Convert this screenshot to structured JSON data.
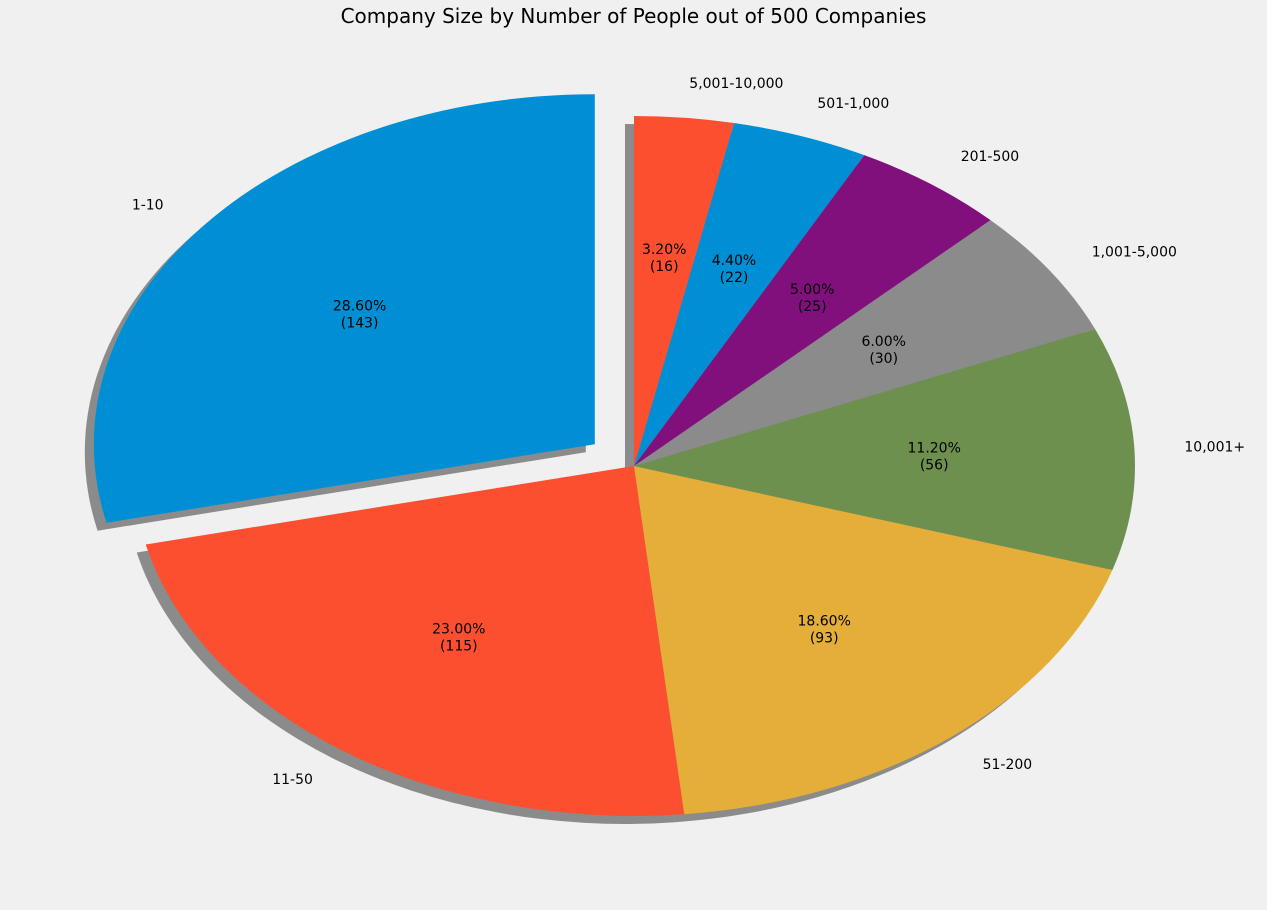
{
  "chart_data": {
    "type": "pie",
    "title": "Company Size by Number of People out of 500 Companies",
    "total": 500,
    "start_angle_deg": 90,
    "direction": "counterclockwise",
    "shadow": true,
    "slices": [
      {
        "label": "1-10",
        "value": 143,
        "percent_text": "28.60%",
        "count_text": "(143)",
        "color": "#008fd5",
        "explode": 0.1
      },
      {
        "label": "11-50",
        "value": 115,
        "percent_text": "23.00%",
        "count_text": "(115)",
        "color": "#fc4f30",
        "explode": 0
      },
      {
        "label": "51-200",
        "value": 93,
        "percent_text": "18.60%",
        "count_text": "(93)",
        "color": "#e5ae38",
        "explode": 0
      },
      {
        "label": "10,001+",
        "value": 56,
        "percent_text": "11.20%",
        "count_text": "(56)",
        "color": "#6d904f",
        "explode": 0
      },
      {
        "label": "1,001-5,000",
        "value": 30,
        "percent_text": "6.00%",
        "count_text": "(30)",
        "color": "#8b8b8b",
        "explode": 0
      },
      {
        "label": "201-500",
        "value": 25,
        "percent_text": "5.00%",
        "count_text": "(25)",
        "color": "#810f7c",
        "explode": 0
      },
      {
        "label": "501-1,000",
        "value": 22,
        "percent_text": "4.40%",
        "count_text": "(22)",
        "color": "#008fd5",
        "explode": 0
      },
      {
        "label": "5,001-10,000",
        "value": 16,
        "percent_text": "3.20%",
        "count_text": "(16)",
        "color": "#fc4f30",
        "explode": 0
      }
    ]
  }
}
